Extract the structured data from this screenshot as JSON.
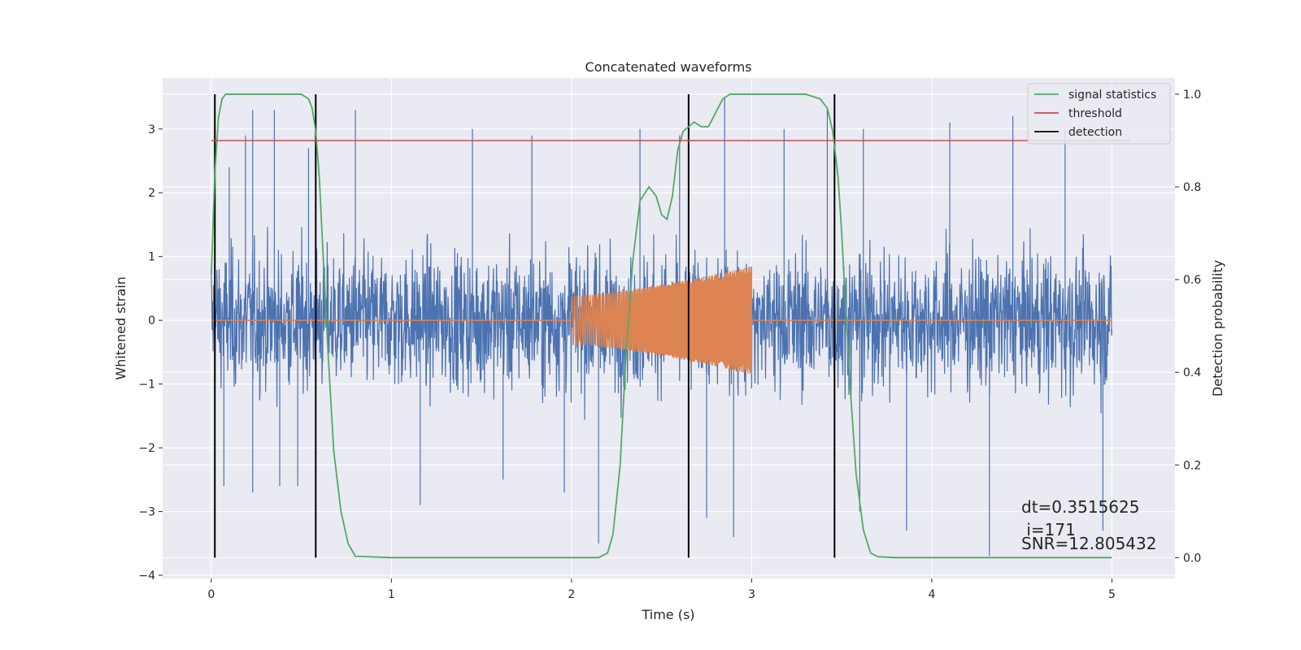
{
  "chart_data": {
    "type": "line",
    "title": "Concatenated waveforms",
    "xlabel": "Time (s)",
    "ylabel": "Whitened strain",
    "y2label": "Detection probability",
    "xlim": [
      -0.27,
      5.35
    ],
    "ylim": [
      -4.05,
      3.8
    ],
    "y2lim": [
      -0.045,
      1.035
    ],
    "xticks": [
      0,
      1,
      2,
      3,
      4,
      5
    ],
    "yticks": [
      -4,
      -3,
      -2,
      -1,
      0,
      1,
      2,
      3
    ],
    "y2ticks": [
      0.0,
      0.2,
      0.4,
      0.6,
      0.8,
      1.0
    ],
    "grid": true,
    "legend_position": "top-right",
    "colors": {
      "strain": "#4c72b0",
      "template": "#dd8452",
      "signal_statistics": "#55a868",
      "threshold": "#c44e52",
      "detection": "#000000",
      "plot_bg": "#eaeaf2",
      "grid": "#ffffff"
    },
    "series": [
      {
        "name": "",
        "key": "whitened_strain",
        "axis": "left",
        "x_range": [
          0,
          5
        ],
        "typical_envelope": [
          -1.6,
          2.0
        ],
        "spike_points": [
          {
            "x": 0.07,
            "y": -2.6
          },
          {
            "x": 0.1,
            "y": 2.4
          },
          {
            "x": 0.19,
            "y": 2.9
          },
          {
            "x": 0.23,
            "y": -2.7
          },
          {
            "x": 0.23,
            "y": 3.3
          },
          {
            "x": 0.35,
            "y": 3.3
          },
          {
            "x": 0.38,
            "y": -2.6
          },
          {
            "x": 0.48,
            "y": -2.6
          },
          {
            "x": 0.54,
            "y": 2.7
          },
          {
            "x": 0.8,
            "y": 3.3
          },
          {
            "x": 1.16,
            "y": -2.9
          },
          {
            "x": 1.45,
            "y": 3.0
          },
          {
            "x": 1.62,
            "y": -2.5
          },
          {
            "x": 1.78,
            "y": 2.9
          },
          {
            "x": 1.96,
            "y": -2.7
          },
          {
            "x": 2.15,
            "y": -3.5
          },
          {
            "x": 2.38,
            "y": 3.0
          },
          {
            "x": 2.6,
            "y": 2.9
          },
          {
            "x": 2.75,
            "y": -3.1
          },
          {
            "x": 2.85,
            "y": 3.5
          },
          {
            "x": 2.9,
            "y": -3.4
          },
          {
            "x": 3.18,
            "y": 3.0
          },
          {
            "x": 3.42,
            "y": 3.3
          },
          {
            "x": 3.6,
            "y": -3.0
          },
          {
            "x": 3.62,
            "y": 3.0
          },
          {
            "x": 3.86,
            "y": -3.3
          },
          {
            "x": 4.1,
            "y": 3.1
          },
          {
            "x": 4.32,
            "y": -3.7
          },
          {
            "x": 4.45,
            "y": 3.2
          },
          {
            "x": 4.74,
            "y": 3.0
          },
          {
            "x": 4.95,
            "y": -3.3
          }
        ]
      },
      {
        "name": "",
        "key": "injected_chirp",
        "axis": "left",
        "x_range": [
          2,
          3
        ],
        "amplitude_start": 0.38,
        "amplitude_end": 0.85
      },
      {
        "name": "signal statistics",
        "key": "signal_statistics",
        "axis": "right",
        "x": [
          0,
          0.02,
          0.04,
          0.06,
          0.08,
          0.1,
          0.3,
          0.5,
          0.54,
          0.56,
          0.58,
          0.6,
          0.62,
          0.65,
          0.68,
          0.72,
          0.76,
          0.8,
          1.0,
          1.5,
          2.0,
          2.15,
          2.2,
          2.23,
          2.27,
          2.3,
          2.34,
          2.38,
          2.43,
          2.47,
          2.5,
          2.53,
          2.56,
          2.59,
          2.62,
          2.65,
          2.68,
          2.72,
          2.76,
          2.8,
          2.84,
          2.88,
          3.0,
          3.3,
          3.38,
          3.42,
          3.45,
          3.48,
          3.5,
          3.52,
          3.55,
          3.58,
          3.62,
          3.66,
          3.7,
          3.8,
          4.0,
          4.5,
          5.0
        ],
        "values": [
          0.61,
          0.83,
          0.95,
          0.99,
          1.0,
          1.0,
          1.0,
          1.0,
          0.99,
          0.97,
          0.92,
          0.82,
          0.66,
          0.43,
          0.23,
          0.1,
          0.03,
          0.003,
          0.0,
          0.0,
          0.0,
          0.0,
          0.01,
          0.05,
          0.2,
          0.42,
          0.64,
          0.77,
          0.8,
          0.78,
          0.74,
          0.73,
          0.78,
          0.88,
          0.92,
          0.93,
          0.94,
          0.93,
          0.93,
          0.96,
          0.99,
          1.0,
          1.0,
          1.0,
          0.99,
          0.97,
          0.92,
          0.82,
          0.7,
          0.55,
          0.35,
          0.18,
          0.06,
          0.01,
          0.002,
          0.0,
          0.0,
          0.0,
          0.0
        ]
      },
      {
        "name": "threshold",
        "key": "threshold",
        "axis": "right",
        "x": [
          0,
          5.1
        ],
        "values": [
          0.9,
          0.9
        ]
      },
      {
        "name": "detection",
        "key": "detection",
        "axis": "right",
        "x_positions": [
          0.02,
          0.58,
          2.65,
          3.46
        ],
        "y_range": [
          0.0,
          1.0
        ]
      }
    ],
    "annotations": [
      "dt=0.3515625",
      " i=171",
      "SNR=12.805432"
    ]
  }
}
